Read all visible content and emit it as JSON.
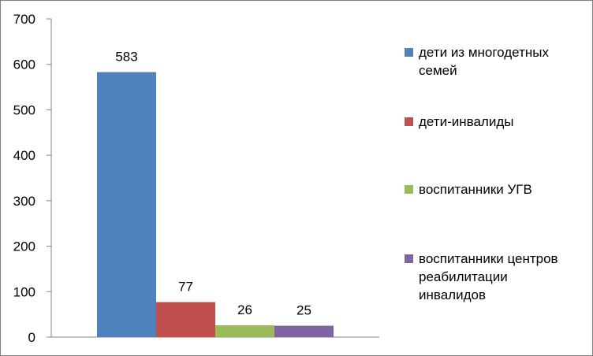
{
  "chart_data": {
    "type": "bar",
    "title": "",
    "xlabel": "",
    "ylabel": "",
    "ylim": [
      0,
      700
    ],
    "yticks": [
      0,
      100,
      200,
      300,
      400,
      500,
      600,
      700
    ],
    "grid": false,
    "legend_position": "right",
    "series": [
      {
        "name": "дети из многодетных семей",
        "legend_lines": [
          "дети из многодетных",
          "семей"
        ],
        "value": 583,
        "color": "#4F81BD"
      },
      {
        "name": "дети-инвалиды",
        "legend_lines": [
          "дети-инвалиды"
        ],
        "value": 77,
        "color": "#C0504D"
      },
      {
        "name": "воспитанники УГВ",
        "legend_lines": [
          "воспитанники УГВ"
        ],
        "value": 26,
        "color": "#9BBB59"
      },
      {
        "name": "воспитанники центров реабилитации инвалидов",
        "legend_lines": [
          "воспитанники центров",
          "реабилитации",
          "инвалидов"
        ],
        "value": 25,
        "color": "#8064A2"
      }
    ]
  }
}
